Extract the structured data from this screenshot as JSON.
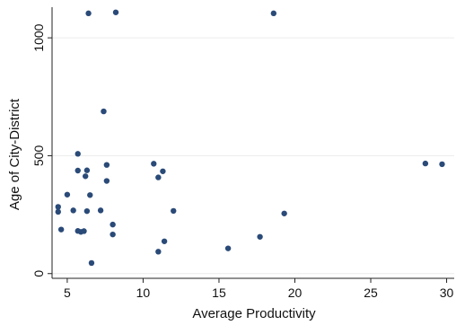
{
  "chart_data": {
    "type": "scatter",
    "xlabel": "Average Productivity",
    "ylabel": "Age of City-District",
    "xlim": [
      4,
      30.5
    ],
    "ylim": [
      -20,
      1130
    ],
    "x_ticks": [
      {
        "value": 5,
        "label": "5"
      },
      {
        "value": 10,
        "label": "10"
      },
      {
        "value": 15,
        "label": "15"
      },
      {
        "value": 20,
        "label": "20"
      },
      {
        "value": 25,
        "label": "25"
      },
      {
        "value": 30,
        "label": "30"
      }
    ],
    "y_ticks": [
      {
        "value": 0,
        "label": "0"
      },
      {
        "value": 500,
        "label": "500"
      },
      {
        "value": 1000,
        "label": "1000"
      }
    ],
    "grid": "horizontal",
    "colors": {
      "marker": "#2a4a78",
      "grid": "#ececec",
      "axis": "#222222"
    },
    "points": [
      {
        "x": 4.4,
        "y": 283
      },
      {
        "x": 4.4,
        "y": 262
      },
      {
        "x": 4.6,
        "y": 187
      },
      {
        "x": 5.0,
        "y": 335
      },
      {
        "x": 5.4,
        "y": 268
      },
      {
        "x": 5.7,
        "y": 508
      },
      {
        "x": 5.7,
        "y": 437
      },
      {
        "x": 5.7,
        "y": 181
      },
      {
        "x": 5.9,
        "y": 177
      },
      {
        "x": 6.1,
        "y": 180
      },
      {
        "x": 6.2,
        "y": 413
      },
      {
        "x": 6.3,
        "y": 438
      },
      {
        "x": 6.3,
        "y": 265
      },
      {
        "x": 6.4,
        "y": 1104
      },
      {
        "x": 6.5,
        "y": 333
      },
      {
        "x": 6.6,
        "y": 45
      },
      {
        "x": 7.2,
        "y": 268
      },
      {
        "x": 7.4,
        "y": 688
      },
      {
        "x": 7.6,
        "y": 461
      },
      {
        "x": 7.6,
        "y": 393
      },
      {
        "x": 8.0,
        "y": 208
      },
      {
        "x": 8.0,
        "y": 166
      },
      {
        "x": 8.2,
        "y": 1108
      },
      {
        "x": 10.7,
        "y": 466
      },
      {
        "x": 11.0,
        "y": 408
      },
      {
        "x": 11.0,
        "y": 93
      },
      {
        "x": 11.3,
        "y": 434
      },
      {
        "x": 11.4,
        "y": 137
      },
      {
        "x": 12.0,
        "y": 266
      },
      {
        "x": 15.6,
        "y": 107
      },
      {
        "x": 17.7,
        "y": 156
      },
      {
        "x": 18.6,
        "y": 1104
      },
      {
        "x": 19.3,
        "y": 255
      },
      {
        "x": 28.6,
        "y": 467
      },
      {
        "x": 29.7,
        "y": 464
      }
    ]
  }
}
